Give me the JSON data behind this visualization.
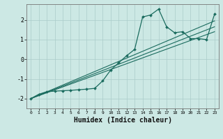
{
  "title": "",
  "xlabel": "Humidex (Indice chaleur)",
  "bg_color": "#cce8e4",
  "grid_color": "#aaccca",
  "line_color": "#1a6b5e",
  "xlim": [
    -0.5,
    23.5
  ],
  "ylim": [
    -2.5,
    2.8
  ],
  "xticks": [
    0,
    1,
    2,
    3,
    4,
    5,
    6,
    7,
    8,
    9,
    10,
    11,
    12,
    13,
    14,
    15,
    16,
    17,
    18,
    19,
    20,
    21,
    22,
    23
  ],
  "yticks": [
    -2,
    -1,
    0,
    1,
    2
  ],
  "main_x": [
    0,
    1,
    2,
    3,
    4,
    5,
    6,
    7,
    8,
    9,
    10,
    11,
    12,
    13,
    14,
    15,
    16,
    17,
    18,
    19,
    20,
    21,
    22,
    23
  ],
  "main_y": [
    -2.0,
    -1.78,
    -1.65,
    -1.62,
    -1.6,
    -1.58,
    -1.55,
    -1.52,
    -1.48,
    -1.1,
    -0.55,
    -0.18,
    0.18,
    0.5,
    2.15,
    2.25,
    2.55,
    1.65,
    1.35,
    1.4,
    1.05,
    1.05,
    1.0,
    2.3
  ],
  "line2_x": [
    0,
    23
  ],
  "line2_y": [
    -2.0,
    1.95
  ],
  "line3_x": [
    0,
    23
  ],
  "line3_y": [
    -2.0,
    1.65
  ],
  "line4_x": [
    0,
    23
  ],
  "line4_y": [
    -2.0,
    1.4
  ]
}
